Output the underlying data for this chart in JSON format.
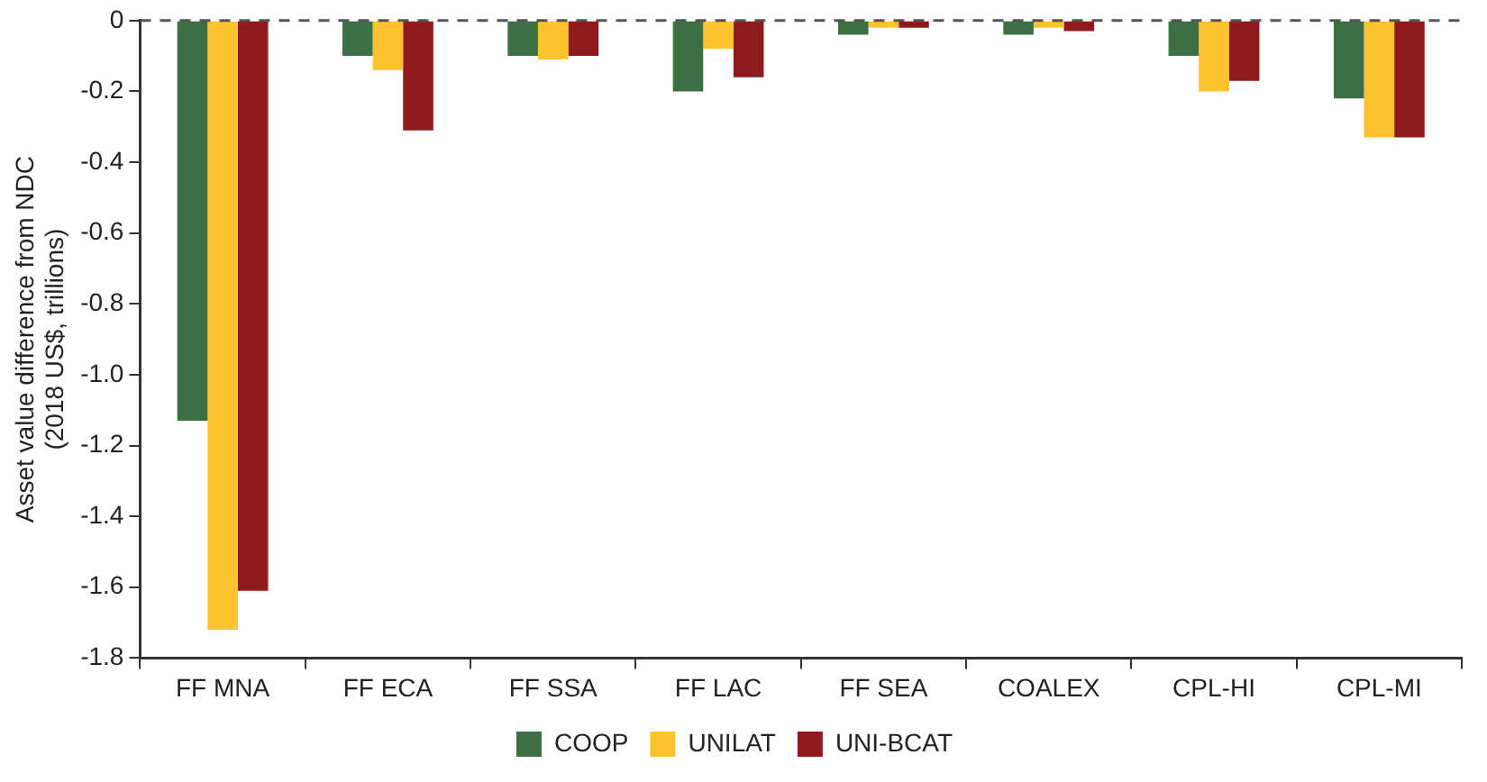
{
  "chart_data": {
    "type": "bar",
    "ylabel": "Asset value difference from NDC\n(2018 US$, trillions)",
    "categories": [
      "FF MNA",
      "FF ECA",
      "FF SSA",
      "FF LAC",
      "FF SEA",
      "COALEX",
      "CPL-HI",
      "CPL-MI"
    ],
    "series": [
      {
        "name": "COOP",
        "color": "#3c7044",
        "values": [
          -1.13,
          -0.1,
          -0.1,
          -0.2,
          -0.04,
          -0.04,
          -0.1,
          -0.22
        ]
      },
      {
        "name": "UNILAT",
        "color": "#fdc32f",
        "values": [
          -1.72,
          -0.14,
          -0.11,
          -0.08,
          -0.02,
          -0.02,
          -0.2,
          -0.33
        ]
      },
      {
        "name": "UNI-BCAT",
        "color": "#8f1a1d",
        "values": [
          -1.61,
          -0.31,
          -0.1,
          -0.16,
          -0.02,
          -0.03,
          -0.17,
          -0.33
        ]
      }
    ],
    "ylim": [
      -1.8,
      0
    ],
    "yticks": [
      0,
      -0.2,
      -0.4,
      -0.6,
      -0.8,
      {
        "value": -1,
        "label": "-1.0"
      },
      -1.2,
      -1.4,
      -1.6,
      -1.8
    ],
    "ref_lines": [
      {
        "axis": "y",
        "value": 0,
        "color": "#555555",
        "line_style": "dashed"
      }
    ],
    "grid": false,
    "legend": "bottom"
  }
}
